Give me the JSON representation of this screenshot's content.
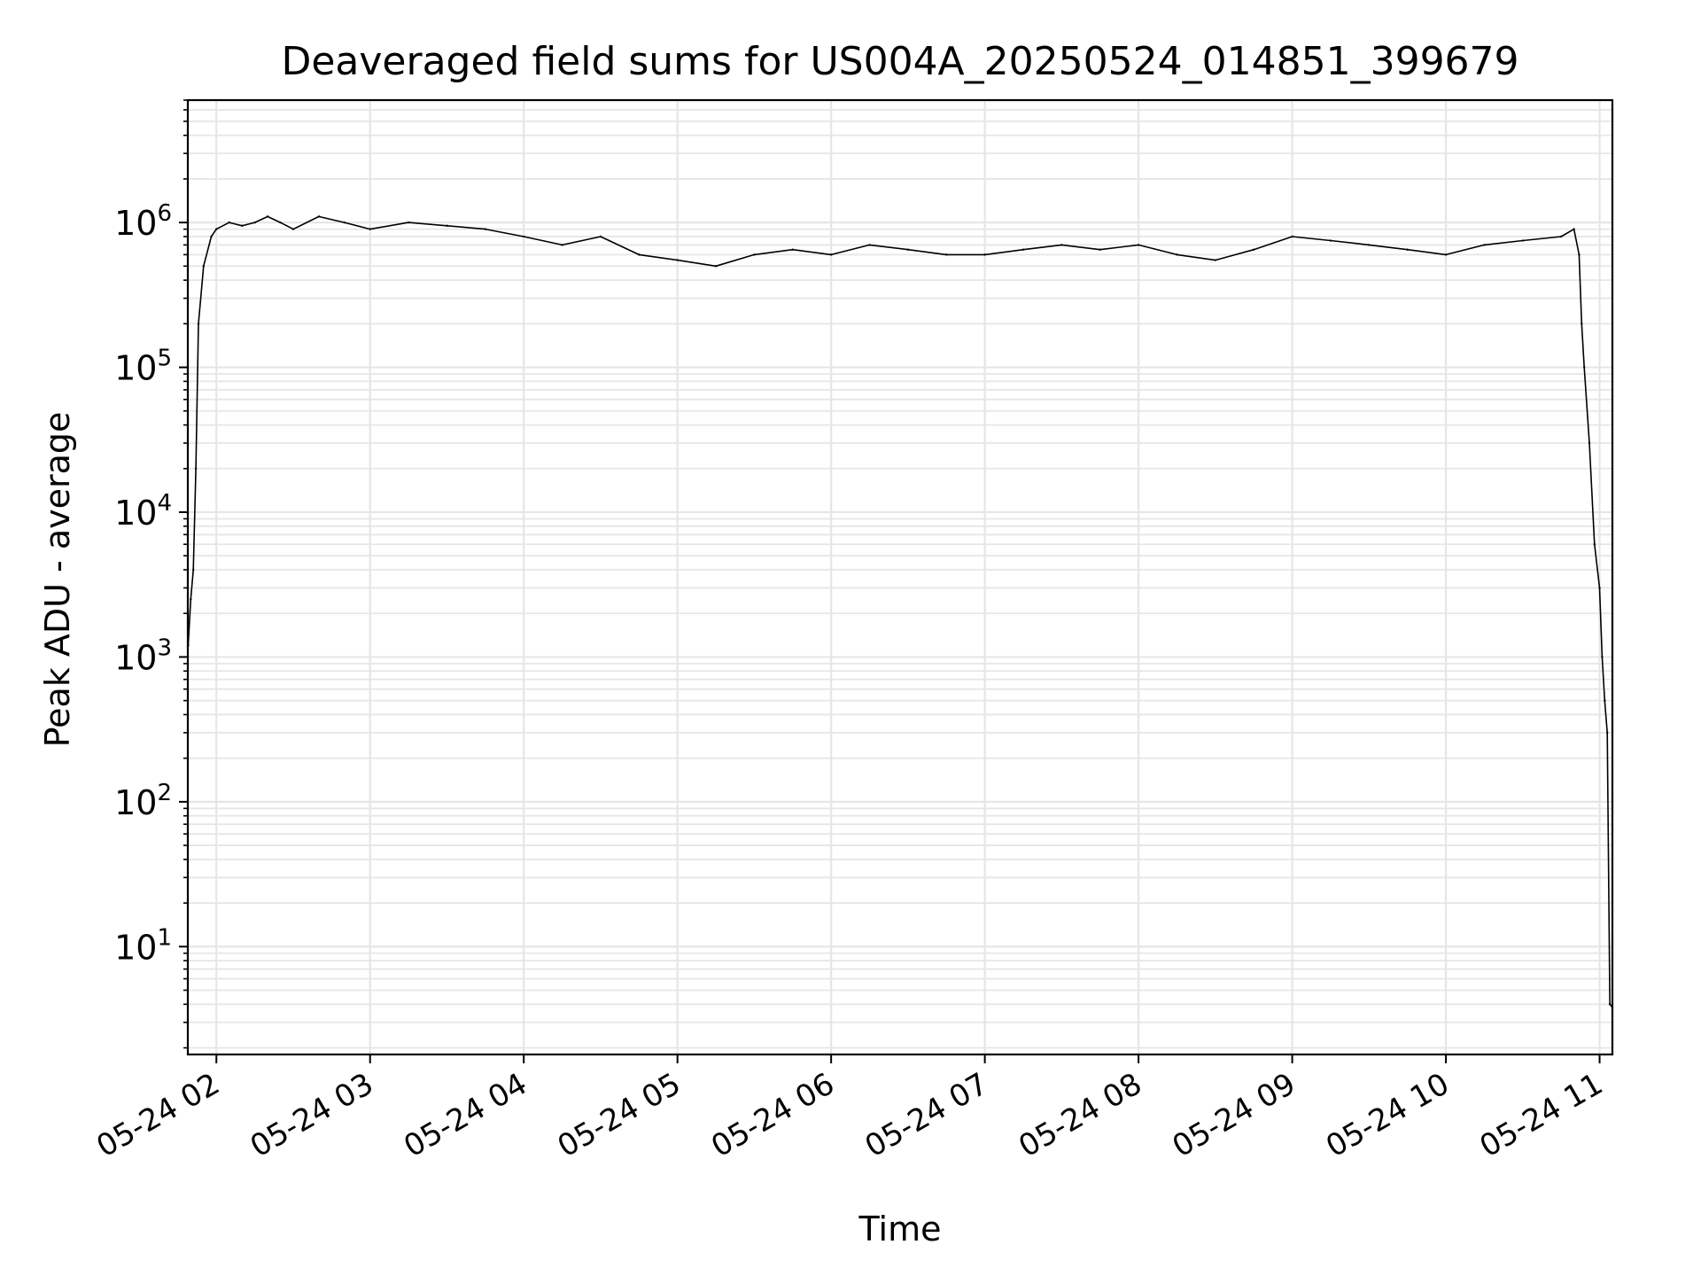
{
  "chart_data": {
    "type": "line",
    "title": "Deaveraged field sums for US004A_20250524_014851_399679",
    "xlabel": "Time",
    "ylabel": "Peak ADU - average",
    "yscale": "log",
    "ylim": [
      1.8,
      7000000
    ],
    "xlim": [
      "05-24 01:48:51",
      "05-24 11:05:00"
    ],
    "grid": "on (major and minor)",
    "line_color": "#000000",
    "x_ticks": [
      {
        "label": "05-24 02",
        "hour": 2
      },
      {
        "label": "05-24 03",
        "hour": 3
      },
      {
        "label": "05-24 04",
        "hour": 4
      },
      {
        "label": "05-24 05",
        "hour": 5
      },
      {
        "label": "05-24 06",
        "hour": 6
      },
      {
        "label": "05-24 07",
        "hour": 7
      },
      {
        "label": "05-24 08",
        "hour": 8
      },
      {
        "label": "05-24 09",
        "hour": 9
      },
      {
        "label": "05-24 10",
        "hour": 10
      },
      {
        "label": "05-24 11",
        "hour": 11
      }
    ],
    "y_ticks": [
      {
        "base": "10",
        "exp": "1",
        "value": 10
      },
      {
        "base": "10",
        "exp": "2",
        "value": 100
      },
      {
        "base": "10",
        "exp": "3",
        "value": 1000
      },
      {
        "base": "10",
        "exp": "4",
        "value": 10000
      },
      {
        "base": "10",
        "exp": "5",
        "value": 100000
      },
      {
        "base": "10",
        "exp": "6",
        "value": 1000000
      }
    ],
    "series": [
      {
        "x": [
          "01:49",
          "01:50",
          "01:51",
          "01:52",
          "01:53",
          "01:55",
          "01:58",
          "02:00",
          "02:05",
          "02:10",
          "02:15",
          "02:20",
          "02:25",
          "02:30",
          "02:40",
          "02:50",
          "03:00",
          "03:15",
          "03:30",
          "03:45",
          "04:00",
          "04:15",
          "04:30",
          "04:45",
          "05:00",
          "05:15",
          "05:30",
          "05:45",
          "06:00",
          "06:15",
          "06:30",
          "06:45",
          "07:00",
          "07:15",
          "07:30",
          "07:45",
          "08:00",
          "08:15",
          "08:30",
          "08:45",
          "09:00",
          "09:15",
          "09:30",
          "09:45",
          "10:00",
          "10:15",
          "10:30",
          "10:45",
          "10:50",
          "10:52",
          "10:53",
          "10:54",
          "10:56",
          "10:58",
          "11:00",
          "11:01",
          "11:02",
          "11:03",
          "11:04",
          "11:05"
        ],
        "y": [
          1200,
          2500,
          4000,
          20000,
          200000,
          500000,
          800000,
          900000,
          1000000,
          950000,
          1000000,
          1100000,
          1000000,
          900000,
          1100000,
          1000000,
          900000,
          1000000,
          950000,
          900000,
          800000,
          700000,
          800000,
          600000,
          550000,
          500000,
          600000,
          650000,
          600000,
          700000,
          650000,
          600000,
          600000,
          650000,
          700000,
          650000,
          700000,
          600000,
          550000,
          650000,
          800000,
          750000,
          700000,
          650000,
          600000,
          700000,
          750000,
          800000,
          900000,
          600000,
          200000,
          100000,
          30000,
          6000,
          3000,
          1000,
          500,
          300,
          4,
          3.8
        ]
      }
    ]
  }
}
